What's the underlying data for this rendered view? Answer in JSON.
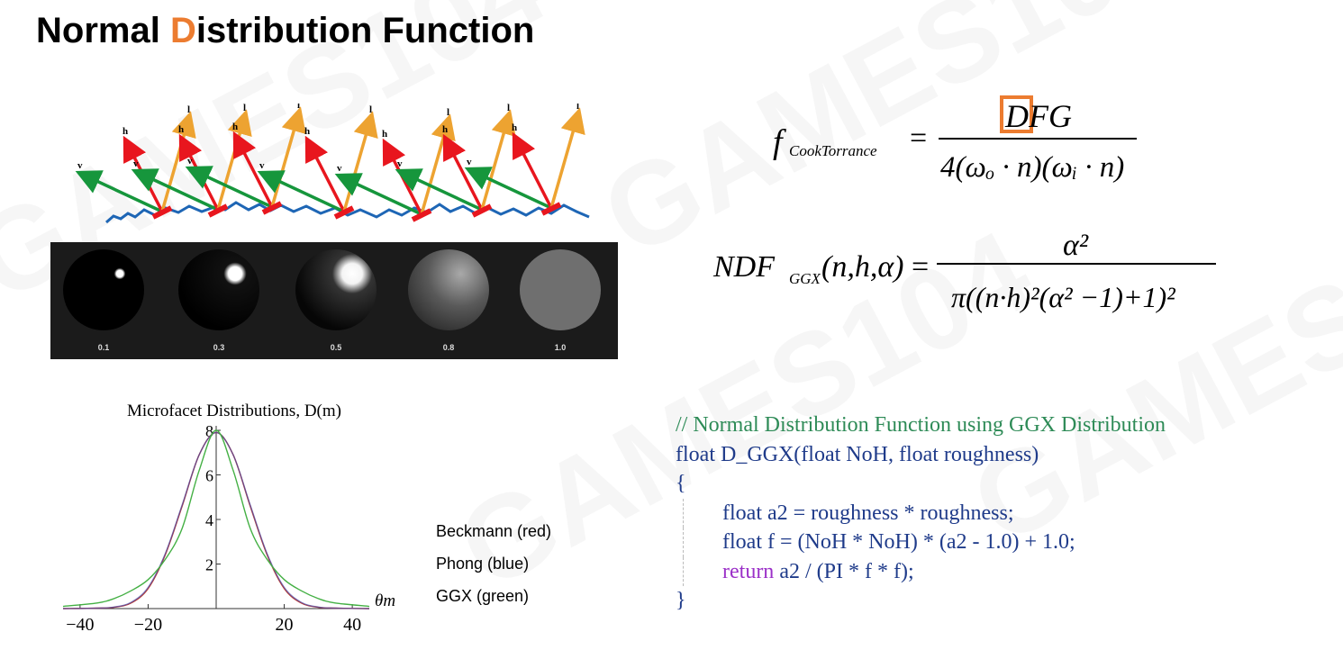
{
  "title": {
    "prefix": "Normal ",
    "accent": "D",
    "suffix": "istribution Function"
  },
  "watermark": "GAMES104",
  "microsurface": {
    "labels": {
      "h": "h",
      "l": "l",
      "v": "v"
    }
  },
  "roughness_spheres": {
    "values": [
      "0.1",
      "0.3",
      "0.5",
      "0.8",
      "1.0"
    ]
  },
  "formula_cook_torrance": {
    "lhs_symbol": "f",
    "lhs_subscript": "CookTorrance",
    "numerator_d": "D",
    "numerator_rest": "FG",
    "denominator": "4(ωₒ · n)(ωᵢ · n)"
  },
  "formula_ndf": {
    "lhs": "NDF",
    "lhs_subscript": "GGX",
    "args": "(n,h,α)",
    "numerator": "α²",
    "denominator": "π((n·h)²(α² −1)+1)²"
  },
  "chart_data": {
    "type": "line",
    "title": "Microfacet Distributions, D(m)",
    "xlabel": "θm",
    "ylabel": "",
    "xlim": [
      -45,
      45
    ],
    "ylim": [
      0,
      8
    ],
    "x_ticks": [
      "−40",
      "−20",
      "20",
      "40"
    ],
    "y_ticks": [
      "2",
      "4",
      "6",
      "8"
    ],
    "series": [
      {
        "name": "Beckmann (red)",
        "color": "#c0392b",
        "x": [
          -45,
          -35,
          -30,
          -25,
          -20,
          -15,
          -10,
          -5,
          0,
          5,
          10,
          15,
          20,
          25,
          30,
          35,
          45
        ],
        "values": [
          0.0,
          0.02,
          0.06,
          0.25,
          0.9,
          2.4,
          4.6,
          6.9,
          7.9,
          6.9,
          4.6,
          2.4,
          0.9,
          0.25,
          0.06,
          0.02,
          0.0
        ]
      },
      {
        "name": "Phong (blue)",
        "color": "#4a4aa8",
        "x": [
          -45,
          -35,
          -30,
          -25,
          -20,
          -15,
          -10,
          -5,
          0,
          5,
          10,
          15,
          20,
          25,
          30,
          35,
          45
        ],
        "values": [
          0.0,
          0.02,
          0.07,
          0.28,
          0.95,
          2.45,
          4.65,
          6.9,
          7.9,
          6.9,
          4.65,
          2.45,
          0.95,
          0.28,
          0.07,
          0.02,
          0.0
        ]
      },
      {
        "name": "GGX (green)",
        "color": "#44b044",
        "x": [
          -45,
          -35,
          -30,
          -25,
          -20,
          -15,
          -10,
          -5,
          0,
          5,
          10,
          15,
          20,
          25,
          30,
          35,
          45
        ],
        "values": [
          0.1,
          0.25,
          0.45,
          0.8,
          1.3,
          2.2,
          3.6,
          6.2,
          8.0,
          6.2,
          3.6,
          2.2,
          1.3,
          0.8,
          0.45,
          0.25,
          0.1
        ]
      }
    ]
  },
  "legend": [
    "Beckmann (red)",
    "Phong (blue)",
    "GGX (green)"
  ],
  "code": {
    "comment": "// Normal Distribution Function using GGX Distribution",
    "signature": "float D_GGX(float NoH, float roughness)",
    "open_brace": "{",
    "line1": "float a2 = roughness * roughness;",
    "line2": "float f = (NoH * NoH) * (a2 - 1.0) + 1.0;",
    "line3_kw": "return",
    "line3_rest": " a2 / (PI * f * f);",
    "close_brace": "}"
  }
}
